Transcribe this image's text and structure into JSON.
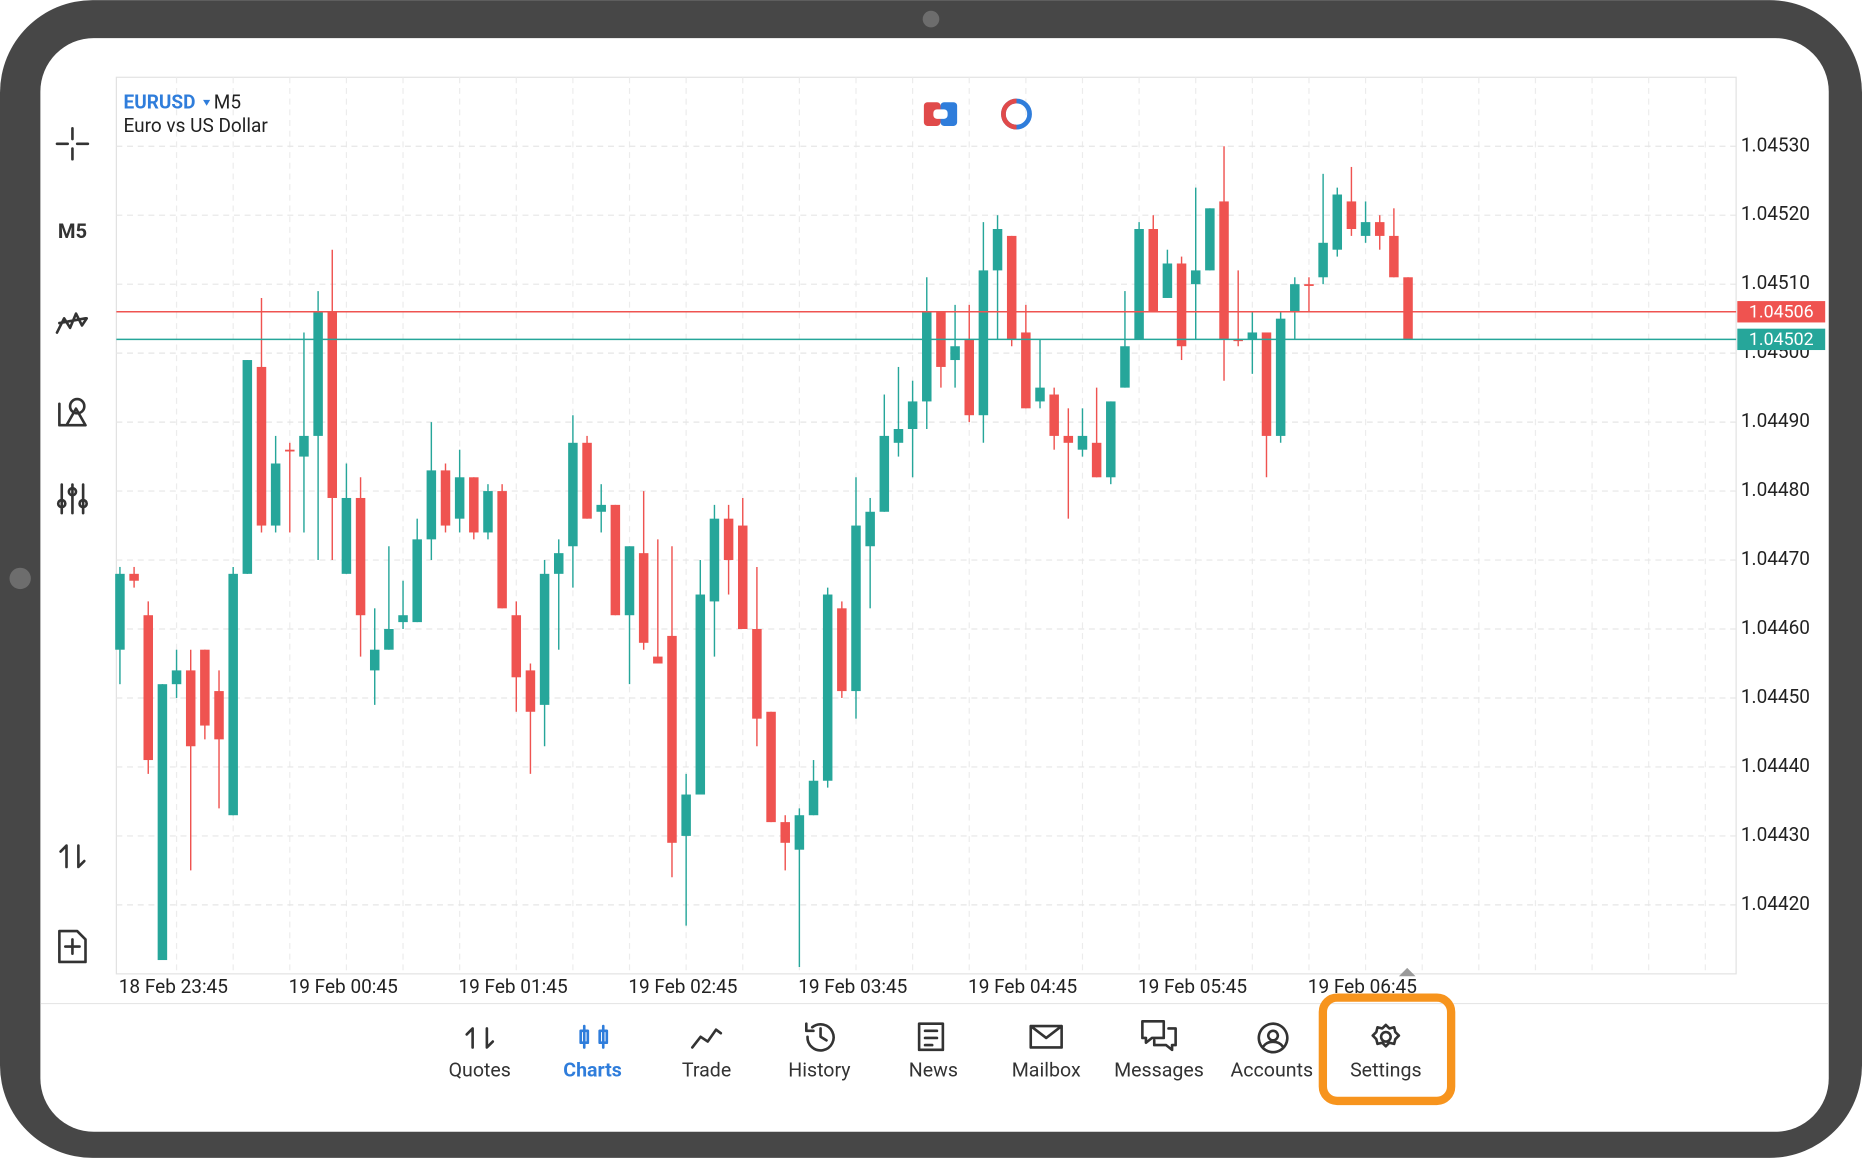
{
  "chart_data": {
    "type": "candlestick",
    "symbol": "EURUSD",
    "timeframe": "M5",
    "subtitle": "Euro vs US Dollar",
    "up_color": "#26a69a",
    "down_color": "#ef5350",
    "grid": true,
    "ylim": [
      1.0441,
      1.0454
    ],
    "yticks": [
      {
        "value": 1.0453,
        "label": "1.04530"
      },
      {
        "value": 1.0452,
        "label": "1.04520"
      },
      {
        "value": 1.0451,
        "label": "1.04510"
      },
      {
        "value": 1.045,
        "label": "1.04500"
      },
      {
        "value": 1.0449,
        "label": "1.04490"
      },
      {
        "value": 1.0448,
        "label": "1.04480"
      },
      {
        "value": 1.0447,
        "label": "1.04470"
      },
      {
        "value": 1.0446,
        "label": "1.04460"
      },
      {
        "value": 1.0445,
        "label": "1.04450"
      },
      {
        "value": 1.0444,
        "label": "1.04440"
      },
      {
        "value": 1.0443,
        "label": "1.04430"
      },
      {
        "value": 1.0442,
        "label": "1.04420"
      }
    ],
    "ask": 1.04506,
    "bid": 1.04502,
    "categories": [
      "18 Feb 23:45",
      null,
      null,
      null,
      null,
      null,
      null,
      null,
      null,
      null,
      null,
      null,
      "19 Feb 00:45",
      null,
      null,
      null,
      null,
      null,
      null,
      null,
      null,
      null,
      null,
      null,
      "19 Feb 01:45",
      null,
      null,
      null,
      null,
      null,
      null,
      null,
      null,
      null,
      null,
      null,
      "19 Feb 02:45",
      null,
      null,
      null,
      null,
      null,
      null,
      null,
      null,
      null,
      null,
      null,
      "19 Feb 03:45",
      null,
      null,
      null,
      null,
      null,
      null,
      null,
      null,
      null,
      null,
      null,
      "19 Feb 04:45",
      null,
      null,
      null,
      null,
      null,
      null,
      null,
      null,
      null,
      null,
      null,
      "19 Feb 05:45",
      null,
      null,
      null,
      null,
      null,
      null,
      null,
      null,
      null,
      null,
      null,
      "19 Feb 06:45",
      null,
      null,
      null,
      null,
      null,
      null,
      null
    ],
    "open": [
      1.04457,
      1.04468,
      1.04462,
      1.04412,
      1.04452,
      1.04454,
      1.04457,
      1.04451,
      1.04433,
      1.04468,
      1.04498,
      1.04475,
      1.04486,
      1.04485,
      1.04488,
      1.04506,
      1.04468,
      1.04479,
      1.04454,
      1.04457,
      1.04461,
      1.04461,
      1.04473,
      1.04483,
      1.04476,
      1.04482,
      1.04474,
      1.0448,
      1.04462,
      1.04454,
      1.04449,
      1.04468,
      1.04472,
      1.04487,
      1.04477,
      1.04478,
      1.04462,
      1.04471,
      1.04456,
      1.04459,
      1.0443,
      1.04436,
      1.04464,
      1.04476,
      1.04475,
      1.0446,
      1.04448,
      1.04432,
      1.04428,
      1.04433,
      1.04438,
      1.04463,
      1.04451,
      1.04472,
      1.04477,
      1.04487,
      1.04489,
      1.04493,
      1.04506,
      1.04499,
      1.04502,
      1.04491,
      1.04512,
      1.04517,
      1.04503,
      1.04493,
      1.04494,
      1.04488,
      1.04486,
      1.04487,
      1.04482,
      1.04495,
      1.04502,
      1.04518,
      1.04508,
      1.04513,
      1.0451,
      1.04512,
      1.04522,
      1.04502,
      1.04502,
      1.04503,
      1.04488,
      1.04506,
      1.0451,
      1.04511,
      1.04515,
      1.04522,
      1.04517,
      1.04519,
      1.04517,
      1.04511
    ],
    "high": [
      1.04469,
      1.04469,
      1.04464,
      1.04452,
      1.04457,
      1.04457,
      1.04457,
      1.04454,
      1.04469,
      1.04499,
      1.04508,
      1.04488,
      1.04487,
      1.04503,
      1.04509,
      1.04515,
      1.04484,
      1.04482,
      1.04463,
      1.04472,
      1.04467,
      1.04476,
      1.0449,
      1.04484,
      1.04486,
      1.04482,
      1.04481,
      1.04481,
      1.04464,
      1.04455,
      1.0447,
      1.04473,
      1.04491,
      1.04488,
      1.04481,
      1.04478,
      1.04472,
      1.0448,
      1.04473,
      1.04472,
      1.04439,
      1.0447,
      1.04478,
      1.04478,
      1.04479,
      1.04469,
      1.04448,
      1.04433,
      1.04434,
      1.04441,
      1.04466,
      1.04464,
      1.04482,
      1.04479,
      1.04494,
      1.04498,
      1.04496,
      1.04511,
      1.04506,
      1.04507,
      1.04507,
      1.04519,
      1.0452,
      1.04517,
      1.04507,
      1.04502,
      1.04495,
      1.04492,
      1.04492,
      1.04495,
      1.04493,
      1.04509,
      1.04519,
      1.0452,
      1.04515,
      1.04514,
      1.04524,
      1.04521,
      1.0453,
      1.04512,
      1.04506,
      1.04503,
      1.04506,
      1.04511,
      1.04511,
      1.04526,
      1.04524,
      1.04527,
      1.04522,
      1.0452,
      1.04521,
      1.04511
    ],
    "low": [
      1.04452,
      1.04466,
      1.04439,
      1.04412,
      1.0445,
      1.04425,
      1.04444,
      1.04434,
      1.04433,
      1.04468,
      1.04474,
      1.04474,
      1.04474,
      1.04474,
      1.0447,
      1.0447,
      1.04468,
      1.04456,
      1.04449,
      1.04457,
      1.0446,
      1.04461,
      1.0447,
      1.04474,
      1.04474,
      1.04473,
      1.04473,
      1.04463,
      1.04448,
      1.04439,
      1.04443,
      1.04457,
      1.04466,
      1.04476,
      1.04474,
      1.04462,
      1.04452,
      1.04457,
      1.04455,
      1.04424,
      1.04417,
      1.04436,
      1.04456,
      1.04465,
      1.0446,
      1.04443,
      1.04432,
      1.04425,
      1.04411,
      1.04433,
      1.04437,
      1.0445,
      1.04447,
      1.04463,
      1.04477,
      1.04485,
      1.04482,
      1.04489,
      1.04495,
      1.04495,
      1.0449,
      1.04487,
      1.04502,
      1.04501,
      1.04492,
      1.04492,
      1.04486,
      1.04476,
      1.04485,
      1.04482,
      1.04481,
      1.04495,
      1.04502,
      1.04506,
      1.04508,
      1.04499,
      1.04502,
      1.04512,
      1.04496,
      1.04501,
      1.04497,
      1.04482,
      1.04487,
      1.04502,
      1.04506,
      1.0451,
      1.04514,
      1.04517,
      1.04516,
      1.04515,
      1.04511,
      1.04502
    ],
    "close": [
      1.04468,
      1.04467,
      1.04441,
      1.04452,
      1.04454,
      1.04443,
      1.04446,
      1.04444,
      1.04468,
      1.04499,
      1.04475,
      1.04484,
      1.04486,
      1.04488,
      1.04506,
      1.04479,
      1.04479,
      1.04462,
      1.04457,
      1.0446,
      1.04462,
      1.04473,
      1.04483,
      1.04475,
      1.04482,
      1.04474,
      1.0448,
      1.04463,
      1.04453,
      1.04448,
      1.04468,
      1.04471,
      1.04487,
      1.04476,
      1.04478,
      1.04462,
      1.04472,
      1.04458,
      1.04455,
      1.04429,
      1.04436,
      1.04465,
      1.04476,
      1.0447,
      1.0446,
      1.04447,
      1.04432,
      1.04429,
      1.04433,
      1.04438,
      1.04465,
      1.04451,
      1.04475,
      1.04477,
      1.04488,
      1.04489,
      1.04493,
      1.04506,
      1.04498,
      1.04501,
      1.04491,
      1.04512,
      1.04518,
      1.04502,
      1.04492,
      1.04495,
      1.04488,
      1.04487,
      1.04488,
      1.04482,
      1.04493,
      1.04501,
      1.04518,
      1.04506,
      1.04513,
      1.04501,
      1.04512,
      1.04521,
      1.04502,
      1.04502,
      1.04503,
      1.04488,
      1.04505,
      1.0451,
      1.0451,
      1.04516,
      1.04523,
      1.04518,
      1.04519,
      1.04517,
      1.04511,
      1.04502
    ]
  },
  "nav": [
    "Quotes",
    "Charts",
    "Trade",
    "History",
    "News",
    "Mailbox",
    "Messages",
    "Accounts",
    "Settings"
  ]
}
